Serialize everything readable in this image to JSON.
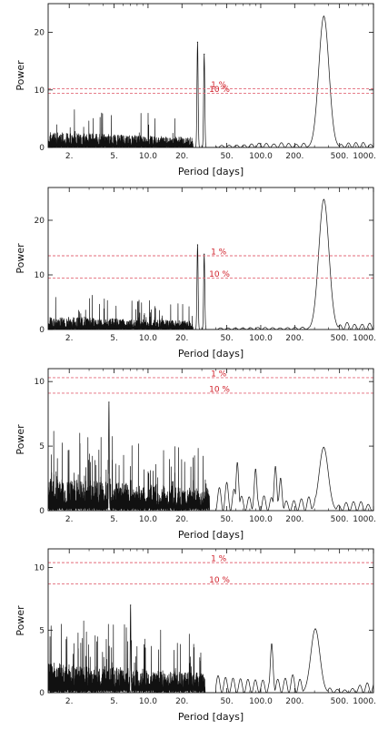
{
  "chart_data": [
    {
      "type": "line",
      "xlabel": "Period [days]",
      "ylabel": "Power",
      "xscale": "log",
      "xlim": [
        1.3,
        1000
      ],
      "ylim": [
        0,
        25
      ],
      "x_ticks": [
        2,
        5,
        10,
        20,
        50,
        100,
        200,
        500,
        1000
      ],
      "x_tick_labels": [
        "2.",
        "5.",
        "10.0",
        "20.",
        "50.",
        "100.0",
        "200.",
        "500.",
        "1000."
      ],
      "y_ticks": [
        0,
        10,
        20
      ],
      "y_tick_labels": [
        "0",
        "10",
        "20"
      ],
      "grid": false,
      "significance_levels": [
        {
          "label": "1 %",
          "value": 10.2
        },
        {
          "label": "10 %",
          "value": 9.4
        }
      ],
      "noise": {
        "p_max": 25,
        "base": 1.2,
        "spread": 2.2,
        "spike_prob": 0.04,
        "spike_height": 6.5
      },
      "peaks": [
        {
          "period": 27.5,
          "power": 18.3,
          "width": 0.005
        },
        {
          "period": 31.5,
          "power": 16.2,
          "width": 0.005
        },
        {
          "period": 363,
          "power": 22.8,
          "width": 0.045
        }
      ],
      "tail": [
        [
          40,
          0.35
        ],
        [
          70,
          0.45
        ],
        [
          100,
          0.8
        ],
        [
          130,
          0.6
        ],
        [
          160,
          0.9
        ],
        [
          200,
          0.5
        ],
        [
          250,
          0.8
        ],
        [
          300,
          0.3
        ],
        [
          480,
          0.4
        ],
        [
          600,
          0.8
        ],
        [
          800,
          0.9
        ],
        [
          1000,
          0.4
        ]
      ],
      "seed": 11
    },
    {
      "type": "line",
      "xlabel": "Period [days]",
      "ylabel": "Power",
      "xscale": "log",
      "xlim": [
        1.3,
        1000
      ],
      "ylim": [
        0,
        26
      ],
      "x_ticks": [
        2,
        5,
        10,
        20,
        50,
        100,
        200,
        500,
        1000
      ],
      "x_tick_labels": [
        "2.",
        "5.",
        "10.0",
        "20.",
        "50.",
        "100.0",
        "200.",
        "500.",
        "1000."
      ],
      "y_ticks": [
        0,
        10,
        20
      ],
      "y_tick_labels": [
        "0",
        "10",
        "20"
      ],
      "grid": false,
      "significance_levels": [
        {
          "label": "1 %",
          "value": 13.5
        },
        {
          "label": "10 %",
          "value": 9.4
        }
      ],
      "noise": {
        "p_max": 25,
        "base": 1.0,
        "spread": 2.0,
        "spike_prob": 0.04,
        "spike_height": 6.0
      },
      "peaks": [
        {
          "period": 27.5,
          "power": 15.5,
          "width": 0.005
        },
        {
          "period": 31.5,
          "power": 13.8,
          "width": 0.005
        },
        {
          "period": 363,
          "power": 23.8,
          "width": 0.045
        }
      ],
      "tail": [
        [
          40,
          0.3
        ],
        [
          70,
          0.3
        ],
        [
          100,
          0.4
        ],
        [
          150,
          0.3
        ],
        [
          200,
          0.4
        ],
        [
          300,
          0.5
        ],
        [
          480,
          0.6
        ],
        [
          560,
          1.4
        ],
        [
          700,
          0.9
        ],
        [
          850,
          1.0
        ],
        [
          1000,
          1.3
        ]
      ],
      "seed": 23
    },
    {
      "type": "line",
      "xlabel": "Period [days]",
      "ylabel": "Power",
      "xscale": "log",
      "xlim": [
        1.3,
        1000
      ],
      "ylim": [
        0,
        11
      ],
      "x_ticks": [
        2,
        5,
        10,
        20,
        50,
        100,
        200,
        500,
        1000
      ],
      "x_tick_labels": [
        "2.",
        "5.",
        "10.0",
        "20.",
        "50.",
        "100.0",
        "200.",
        "500.",
        "1000."
      ],
      "y_ticks": [
        0,
        5,
        10
      ],
      "y_tick_labels": [
        "0",
        "5",
        "10"
      ],
      "grid": false,
      "significance_levels": [
        {
          "label": "1 %",
          "value": 10.3
        },
        {
          "label": "10 %",
          "value": 9.1
        }
      ],
      "noise": {
        "p_max": 35,
        "base": 1.4,
        "spread": 2.0,
        "spike_prob": 0.08,
        "spike_height": 5.2
      },
      "peaks": [
        {
          "period": 4.5,
          "power": 8.4,
          "width": 0.003
        },
        {
          "period": 62,
          "power": 3.7,
          "width": 0.012
        },
        {
          "period": 90,
          "power": 3.2,
          "width": 0.012
        },
        {
          "period": 135,
          "power": 3.4,
          "width": 0.012
        },
        {
          "period": 150,
          "power": 2.5,
          "width": 0.012
        },
        {
          "period": 362,
          "power": 4.9,
          "width": 0.04
        }
      ],
      "tail": [
        [
          40,
          1.6
        ],
        [
          50,
          2.2
        ],
        [
          70,
          1.0
        ],
        [
          100,
          1.2
        ],
        [
          180,
          0.7
        ],
        [
          250,
          1.0
        ],
        [
          300,
          1.2
        ],
        [
          480,
          0.4
        ],
        [
          600,
          0.7
        ],
        [
          800,
          0.7
        ],
        [
          1000,
          0.3
        ]
      ],
      "seed": 37
    },
    {
      "type": "line",
      "xlabel": "Period [days]",
      "ylabel": "Power",
      "xscale": "log",
      "xlim": [
        1.3,
        1000
      ],
      "ylim": [
        0,
        11.5
      ],
      "x_ticks": [
        2,
        5,
        10,
        20,
        50,
        100,
        200,
        500,
        1000
      ],
      "x_tick_labels": [
        "2.",
        "5.",
        "10.0",
        "20.",
        "50.",
        "100.0",
        "200.",
        "500.",
        "1000."
      ],
      "y_ticks": [
        0,
        5,
        10
      ],
      "y_tick_labels": [
        "0",
        "5",
        "10"
      ],
      "grid": false,
      "significance_levels": [
        {
          "label": "1 %",
          "value": 10.4
        },
        {
          "label": "10 %",
          "value": 8.7
        }
      ],
      "noise": {
        "p_max": 32,
        "base": 1.3,
        "spread": 1.9,
        "spike_prob": 0.08,
        "spike_height": 5.0
      },
      "peaks": [
        {
          "period": 7.0,
          "power": 7.0,
          "width": 0.003
        },
        {
          "period": 125,
          "power": 3.9,
          "width": 0.012
        },
        {
          "period": 305,
          "power": 5.1,
          "width": 0.04
        }
      ],
      "tail": [
        [
          40,
          1.4
        ],
        [
          50,
          1.2
        ],
        [
          70,
          1.1
        ],
        [
          100,
          1.0
        ],
        [
          160,
          1.1
        ],
        [
          200,
          1.5
        ],
        [
          240,
          0.8
        ],
        [
          450,
          0.3
        ],
        [
          600,
          0.2
        ],
        [
          800,
          0.7
        ],
        [
          1000,
          0.9
        ]
      ],
      "seed": 53
    }
  ]
}
